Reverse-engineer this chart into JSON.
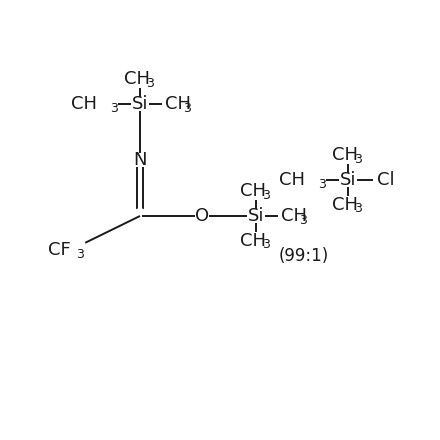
{
  "bg_color": "#ffffff",
  "line_color": "#1a1a1a",
  "lw": 1.4,
  "fs_main": 13,
  "fs_sub": 9,
  "fs_ratio": 12,
  "fig_w": 4.4,
  "fig_h": 4.4,
  "dpi": 100,
  "xlim": [
    0,
    11
  ],
  "ylim": [
    0,
    11
  ]
}
